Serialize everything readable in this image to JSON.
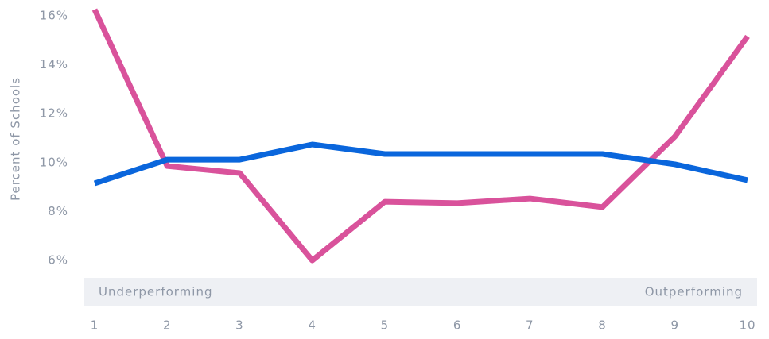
{
  "chart_data": {
    "type": "line",
    "y_label": "Percent of Schools",
    "annotations": [
      "Underperforming",
      "Outperforming"
    ],
    "x": [
      1,
      2,
      3,
      4,
      5,
      6,
      7,
      8,
      9,
      10
    ],
    "series": [
      {
        "color": "#d9529b",
        "values": [
          16.26,
          9.86,
          9.57,
          6.0,
          8.4,
          8.34,
          8.53,
          8.18,
          11.07,
          15.16
        ]
      },
      {
        "color": "#0a66dc",
        "values": [
          9.15,
          10.12,
          10.12,
          10.74,
          10.35,
          10.35,
          10.35,
          10.35,
          9.93,
          9.28
        ]
      }
    ],
    "xlim": [
      1,
      10
    ],
    "xticks": [
      1,
      2,
      3,
      4,
      5,
      6,
      7,
      8,
      9,
      10
    ],
    "ylim": [
      6,
      16
    ],
    "yticks": [
      {
        "value": 6,
        "label": "6%"
      },
      {
        "value": 8,
        "label": "8%"
      },
      {
        "value": 10,
        "label": "10%"
      },
      {
        "value": 12,
        "label": "12%"
      },
      {
        "value": 14,
        "label": "14%"
      },
      {
        "value": 16,
        "label": "16%"
      }
    ],
    "grid": false
  }
}
